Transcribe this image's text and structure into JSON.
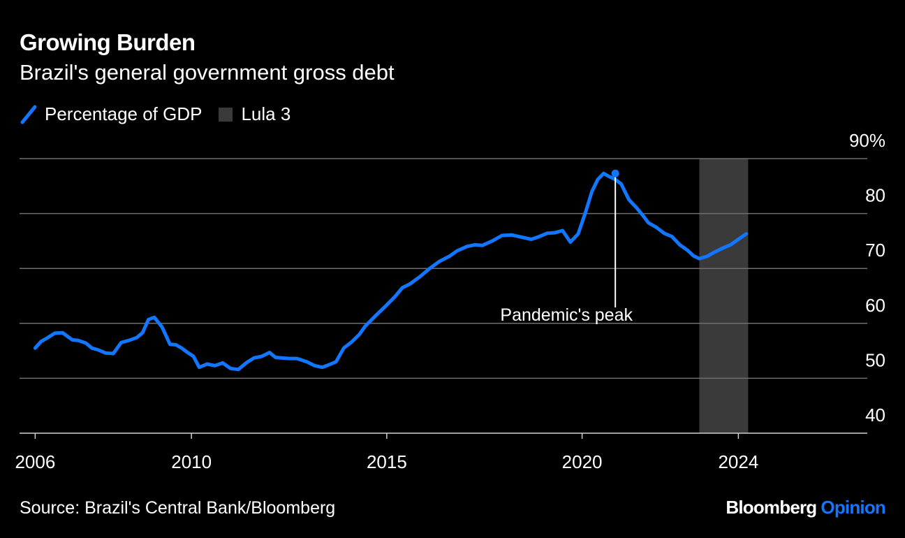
{
  "header": {
    "title": "Growing Burden",
    "subtitle": "Brazil's general government gross debt"
  },
  "legend": {
    "series_label": "Percentage of GDP",
    "shade_label": "Lula 3"
  },
  "colors": {
    "line": "#1276ff",
    "shade": "#3a3a3a",
    "grid": "#6e6e6e",
    "background": "#000000",
    "text": "#ffffff",
    "brand_accent": "#1276ff"
  },
  "footer": {
    "source": "Source: Brazil's Central Bank/Bloomberg",
    "brand_main": "Bloomberg",
    "brand_accent": "Opinion"
  },
  "chart_data": {
    "type": "line",
    "title": "Growing Burden",
    "subtitle": "Brazil's general government gross debt",
    "xlabel": "",
    "ylabel": "",
    "xlim": [
      2005.6,
      2027.3
    ],
    "ylim": [
      40,
      90
    ],
    "y_ticks": [
      {
        "value": 90,
        "label": "90%"
      },
      {
        "value": 80,
        "label": "80"
      },
      {
        "value": 70,
        "label": "70"
      },
      {
        "value": 60,
        "label": "60"
      },
      {
        "value": 50,
        "label": "50"
      },
      {
        "value": 40,
        "label": "40"
      }
    ],
    "x_ticks": [
      {
        "value": 2006,
        "label": "2006"
      },
      {
        "value": 2010,
        "label": "2010"
      },
      {
        "value": 2015,
        "label": "2015"
      },
      {
        "value": 2020,
        "label": "2020"
      },
      {
        "value": 2024,
        "label": "2024"
      }
    ],
    "shaded_region": {
      "label": "Lula 3",
      "x_start": 2023.0,
      "x_end": 2024.25
    },
    "annotation": {
      "text": "Pandemic's peak",
      "x": 2020.85,
      "y": 87.3
    },
    "series": [
      {
        "name": "Percentage of GDP",
        "x": [
          2006.0,
          2006.15,
          2006.3,
          2006.5,
          2006.7,
          2006.95,
          2007.1,
          2007.3,
          2007.45,
          2007.6,
          2007.8,
          2008.0,
          2008.2,
          2008.4,
          2008.6,
          2008.75,
          2008.9,
          2009.05,
          2009.25,
          2009.45,
          2009.6,
          2009.75,
          2009.9,
          2010.05,
          2010.2,
          2010.4,
          2010.6,
          2010.8,
          2011.0,
          2011.2,
          2011.4,
          2011.6,
          2011.8,
          2012.0,
          2012.15,
          2012.3,
          2012.5,
          2012.7,
          2012.95,
          2013.15,
          2013.35,
          2013.5,
          2013.7,
          2013.9,
          2014.1,
          2014.3,
          2014.45,
          2014.7,
          2014.95,
          2015.2,
          2015.4,
          2015.6,
          2015.85,
          2016.1,
          2016.35,
          2016.6,
          2016.8,
          2017.05,
          2017.25,
          2017.45,
          2017.7,
          2017.95,
          2018.2,
          2018.45,
          2018.7,
          2018.9,
          2019.1,
          2019.3,
          2019.5,
          2019.7,
          2019.9,
          2020.1,
          2020.25,
          2020.4,
          2020.55,
          2020.7,
          2020.85,
          2021.0,
          2021.2,
          2021.4,
          2021.55,
          2021.7,
          2021.9,
          2022.1,
          2022.3,
          2022.5,
          2022.7,
          2022.85,
          2023.0,
          2023.2,
          2023.4,
          2023.6,
          2023.8,
          2024.0,
          2024.2
        ],
        "values": [
          55.5,
          56.7,
          57.3,
          58.2,
          58.3,
          57.0,
          56.9,
          56.4,
          55.5,
          55.2,
          54.6,
          54.5,
          56.5,
          56.9,
          57.4,
          58.3,
          60.7,
          61.1,
          59.3,
          56.2,
          56.1,
          55.5,
          54.7,
          54.0,
          52.0,
          52.6,
          52.3,
          52.8,
          51.8,
          51.6,
          52.8,
          53.7,
          54.0,
          54.7,
          53.8,
          53.7,
          53.6,
          53.6,
          53.0,
          52.3,
          52.0,
          52.4,
          53.0,
          55.5,
          56.6,
          58.0,
          59.5,
          61.3,
          63.0,
          64.8,
          66.5,
          67.2,
          68.5,
          70.0,
          71.3,
          72.2,
          73.2,
          74.0,
          74.3,
          74.2,
          75.0,
          76.0,
          76.1,
          75.7,
          75.3,
          75.8,
          76.4,
          76.5,
          76.9,
          74.8,
          76.3,
          80.5,
          84.0,
          86.2,
          87.3,
          86.7,
          86.2,
          85.4,
          82.5,
          81.0,
          79.7,
          78.3,
          77.5,
          76.4,
          75.8,
          74.3,
          73.3,
          72.3,
          71.8,
          72.2,
          73.0,
          73.7,
          74.3,
          75.3,
          76.3
        ]
      }
    ]
  }
}
